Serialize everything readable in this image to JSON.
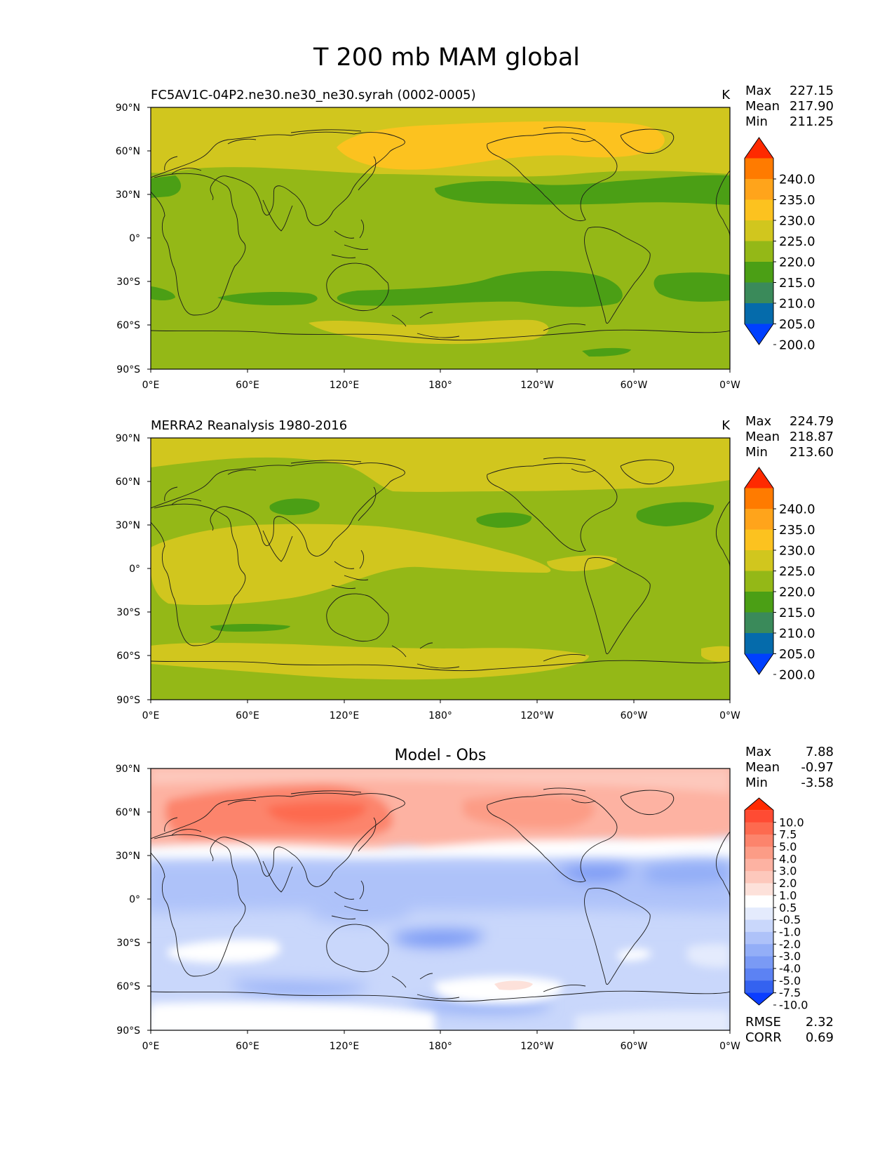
{
  "figure": {
    "title": "T 200 mb MAM global"
  },
  "axes": {
    "lat_ticks": [
      "90°N",
      "60°N",
      "30°N",
      "0°",
      "30°S",
      "60°S",
      "90°S"
    ],
    "lon_ticks": [
      "0°E",
      "60°E",
      "120°E",
      "180°",
      "120°W",
      "60°W",
      "0°W"
    ]
  },
  "panels": [
    {
      "title_left": "FC5AV1C-04P2.ne30.ne30_ne30.syrah (0002-0005)",
      "title_center": "",
      "units": "K",
      "stats": [
        {
          "label": "Max",
          "value": "227.15"
        },
        {
          "label": "Mean",
          "value": "217.90"
        },
        {
          "label": "Min",
          "value": "211.25"
        }
      ],
      "colorbar": {
        "labels": [
          "240.0",
          "235.0",
          "230.0",
          "225.0",
          "220.0",
          "215.0",
          "210.0",
          "205.0",
          "200.0"
        ],
        "colors": [
          "#ff2a00",
          "#ff7b00",
          "#ffa41b",
          "#fcc21f",
          "#d1c61e",
          "#94b817",
          "#4b9f15",
          "#3a8a5a",
          "#056bab",
          "#0040ff"
        ]
      }
    },
    {
      "title_left": "MERRA2 Reanalysis 1980-2016",
      "title_center": "",
      "units": "K",
      "stats": [
        {
          "label": "Max",
          "value": "224.79"
        },
        {
          "label": "Mean",
          "value": "218.87"
        },
        {
          "label": "Min",
          "value": "213.60"
        }
      ],
      "colorbar": {
        "labels": [
          "240.0",
          "235.0",
          "230.0",
          "225.0",
          "220.0",
          "215.0",
          "210.0",
          "205.0",
          "200.0"
        ],
        "colors": [
          "#ff2a00",
          "#ff7b00",
          "#ffa41b",
          "#fcc21f",
          "#d1c61e",
          "#94b817",
          "#4b9f15",
          "#3a8a5a",
          "#056bab",
          "#0040ff"
        ]
      }
    },
    {
      "title_left": "",
      "title_center": "Model - Obs",
      "units": "",
      "stats": [
        {
          "label": "Max",
          "value": "7.88"
        },
        {
          "label": "Mean",
          "value": "-0.97"
        },
        {
          "label": "Min",
          "value": "-3.58"
        }
      ],
      "bottom_stats": [
        {
          "label": "RMSE",
          "value": "2.32"
        },
        {
          "label": "CORR",
          "value": "0.69"
        }
      ],
      "colorbar": {
        "labels": [
          "10.0",
          "7.5",
          "5.0",
          "4.0",
          "3.0",
          "2.0",
          "1.0",
          "0.5",
          "-0.5",
          "-1.0",
          "-2.0",
          "-3.0",
          "-4.0",
          "-5.0",
          "-7.5",
          "-10.0"
        ],
        "colors": [
          "#ff2a00",
          "#ff4b33",
          "#fd6a4f",
          "#fc846c",
          "#fc9c86",
          "#fdb2a2",
          "#fdc8bc",
          "#fde1da",
          "#ffffff",
          "#e4ebfd",
          "#c9d7fb",
          "#aec2f9",
          "#93aef7",
          "#7a9af5",
          "#5c82f3",
          "#3462f0",
          "#0a3dff"
        ]
      }
    }
  ],
  "colors": {
    "diff_white": "#ffffff",
    "coast": "#1a1a1a"
  }
}
